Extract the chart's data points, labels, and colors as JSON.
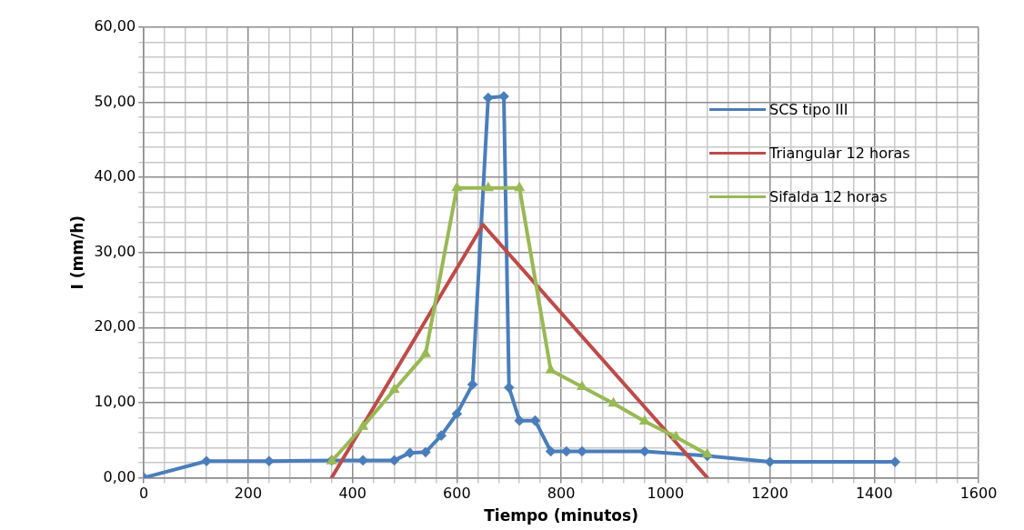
{
  "chart_data": {
    "type": "line",
    "xlabel": "Tiempo (minutos)",
    "ylabel": "I (mm/h)",
    "xlim": [
      0,
      1600
    ],
    "xticks": [
      0,
      {
        "value": 40,
        "label": null
      },
      {
        "value": 80,
        "label": null
      },
      {
        "value": 120,
        "label": null
      },
      {
        "value": 160,
        "label": null
      },
      200,
      {
        "value": 240,
        "label": null
      },
      {
        "value": 280,
        "label": null
      },
      {
        "value": 320,
        "label": null
      },
      {
        "value": 360,
        "label": null
      },
      400,
      {
        "value": 440,
        "label": null
      },
      {
        "value": 480,
        "label": null
      },
      {
        "value": 520,
        "label": null
      },
      {
        "value": 560,
        "label": null
      },
      600,
      {
        "value": 640,
        "label": null
      },
      {
        "value": 680,
        "label": null
      },
      {
        "value": 720,
        "label": null
      },
      {
        "value": 760,
        "label": null
      },
      800,
      {
        "value": 840,
        "label": null
      },
      {
        "value": 880,
        "label": null
      },
      {
        "value": 920,
        "label": null
      },
      {
        "value": 960,
        "label": null
      },
      1000,
      {
        "value": 1040,
        "label": null
      },
      {
        "value": 1080,
        "label": null
      },
      {
        "value": 1120,
        "label": null
      },
      {
        "value": 1160,
        "label": null
      },
      1200,
      {
        "value": 1240,
        "label": null
      },
      {
        "value": 1280,
        "label": null
      },
      {
        "value": 1320,
        "label": null
      },
      {
        "value": 1360,
        "label": null
      },
      1400,
      {
        "value": 1440,
        "label": null
      },
      {
        "value": 1480,
        "label": null
      },
      {
        "value": 1520,
        "label": null
      },
      {
        "value": 1560,
        "label": null
      },
      1600
    ],
    "ylim": [
      0,
      60
    ],
    "yticks": [
      {
        "value": 0,
        "label": "0,00"
      },
      {
        "value": 2,
        "label": null
      },
      {
        "value": 4,
        "label": null
      },
      {
        "value": 6,
        "label": null
      },
      {
        "value": 8,
        "label": null
      },
      {
        "value": 10,
        "label": "10,00"
      },
      {
        "value": 12,
        "label": null
      },
      {
        "value": 14,
        "label": null
      },
      {
        "value": 16,
        "label": null
      },
      {
        "value": 18,
        "label": null
      },
      {
        "value": 20,
        "label": "20,00"
      },
      {
        "value": 22,
        "label": null
      },
      {
        "value": 24,
        "label": null
      },
      {
        "value": 26,
        "label": null
      },
      {
        "value": 28,
        "label": null
      },
      {
        "value": 30,
        "label": "30,00"
      },
      {
        "value": 32,
        "label": null
      },
      {
        "value": 34,
        "label": null
      },
      {
        "value": 36,
        "label": null
      },
      {
        "value": 38,
        "label": null
      },
      {
        "value": 40,
        "label": "40,00"
      },
      {
        "value": 42,
        "label": null
      },
      {
        "value": 44,
        "label": null
      },
      {
        "value": 46,
        "label": null
      },
      {
        "value": 48,
        "label": null
      },
      {
        "value": 50,
        "label": "50,00"
      },
      {
        "value": 52,
        "label": null
      },
      {
        "value": 54,
        "label": null
      },
      {
        "value": 56,
        "label": null
      },
      {
        "value": 58,
        "label": null
      },
      {
        "value": 60,
        "label": "60,00"
      }
    ],
    "grid": true,
    "legend": "top right",
    "line_style": "solid",
    "series": [
      {
        "name": "SCS tipo III",
        "color": "#4a7ebb",
        "marker": "diamond",
        "x": [
          0,
          120,
          240,
          360,
          420,
          480,
          510,
          540,
          570,
          600,
          630,
          660,
          690,
          700,
          720,
          750,
          780,
          810,
          840,
          960,
          1080,
          1200,
          1440
        ],
        "values": [
          0,
          2.2,
          2.2,
          2.3,
          2.3,
          2.3,
          3.3,
          3.4,
          5.6,
          8.5,
          12.4,
          50.6,
          50.8,
          12.0,
          7.6,
          7.6,
          3.5,
          3.5,
          3.5,
          3.5,
          2.9,
          2.1,
          2.1
        ]
      },
      {
        "name": "Triangular 12 horas",
        "color": "#be4b48",
        "marker": "none",
        "x": [
          360,
          650,
          1080
        ],
        "values": [
          0,
          33.7,
          0
        ]
      },
      {
        "name": "Sifalda 12 horas",
        "color": "#98b954",
        "marker": "triangle",
        "x": [
          360,
          420,
          480,
          540,
          600,
          660,
          720,
          780,
          840,
          900,
          960,
          1020,
          1080
        ],
        "values": [
          2.2,
          6.8,
          11.7,
          16.5,
          38.6,
          38.6,
          38.6,
          14.3,
          12.1,
          9.9,
          7.5,
          5.4,
          3.1
        ]
      }
    ]
  }
}
